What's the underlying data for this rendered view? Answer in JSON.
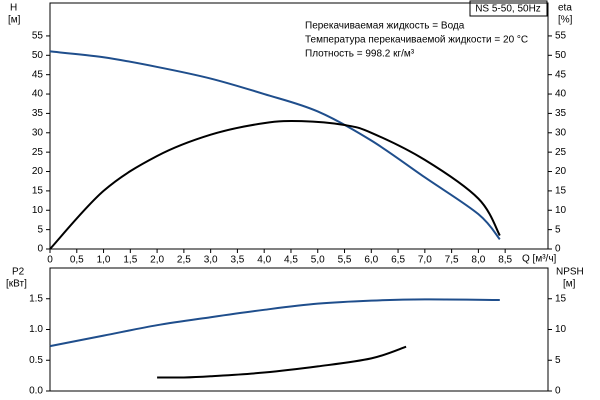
{
  "chart_data": [
    {
      "type": "line",
      "annotations": [
        "NS 5-50, 50Hz",
        "Перекачиваемая жидкость = Вода",
        "Температура перекачиваемой жидкости = 20 °C",
        "Плотность = 998.2 кг/м³"
      ],
      "ylabel": [
        "H",
        "[м]"
      ],
      "y2label": [
        "eta",
        "[%]"
      ],
      "xlabel": "Q [м³/ч]",
      "xlim": [
        0,
        9.3
      ],
      "xticks": [
        0,
        {
          "value": 0.5,
          "label": "0,5"
        },
        {
          "value": 1,
          "label": "1,0"
        },
        {
          "value": 1.5,
          "label": "1,5"
        },
        {
          "value": 2,
          "label": "2,0"
        },
        {
          "value": 2.5,
          "label": "2,5"
        },
        {
          "value": 3,
          "label": "3,0"
        },
        {
          "value": 3.5,
          "label": "3,5"
        },
        {
          "value": 4,
          "label": "4,0"
        },
        {
          "value": 4.5,
          "label": "4,5"
        },
        {
          "value": 5,
          "label": "5,0"
        },
        {
          "value": 5.5,
          "label": "5,5"
        },
        {
          "value": 6,
          "label": "6,0"
        },
        {
          "value": 6.5,
          "label": "6,5"
        },
        {
          "value": 7,
          "label": "7,0"
        },
        {
          "value": 7.5,
          "label": "7,5"
        },
        {
          "value": 8,
          "label": "8,0"
        },
        {
          "value": 8.5,
          "label": "8,5"
        }
      ],
      "ylim": [
        0,
        63.5
      ],
      "yticks": [
        0,
        5,
        10,
        15,
        20,
        25,
        30,
        35,
        40,
        45,
        50,
        55
      ],
      "y2lim": [
        0,
        63.5
      ],
      "y2ticks": [
        0,
        5,
        10,
        15,
        20,
        25,
        30,
        35,
        40,
        45,
        50,
        55
      ],
      "series": [
        {
          "color": "#1f4e8c",
          "x": [
            0,
            1,
            2,
            3,
            4,
            5,
            6,
            7,
            8,
            8.4
          ],
          "values": [
            51,
            49.5,
            47,
            44,
            40,
            35.5,
            28,
            18.5,
            9,
            2.5
          ]
        },
        {
          "color": "#000000",
          "axis": "y2",
          "x": [
            0,
            1,
            2,
            3,
            4,
            4.7,
            5.5,
            6,
            7,
            8,
            8.4
          ],
          "values": [
            0,
            15,
            24,
            29.5,
            32.5,
            33,
            32,
            30,
            23,
            13,
            3.5
          ]
        }
      ]
    },
    {
      "type": "line",
      "ylabel": [
        "P2",
        "[кВт]"
      ],
      "y2label": [
        "NPSH",
        "[м]"
      ],
      "xlim": [
        0,
        9.3
      ],
      "ylim": [
        0,
        2
      ],
      "yticks": [
        {
          "value": 0,
          "label": "0.0"
        },
        0.5,
        {
          "value": 1,
          "label": "1.0"
        },
        1.5
      ],
      "y2lim": [
        0,
        20
      ],
      "y2ticks": [
        0,
        5,
        10,
        15
      ],
      "series": [
        {
          "color": "#1f4e8c",
          "x": [
            0,
            1,
            2,
            3,
            4,
            5,
            6,
            7,
            8.4
          ],
          "values": [
            0.73,
            0.9,
            1.07,
            1.2,
            1.32,
            1.42,
            1.47,
            1.49,
            1.48
          ]
        },
        {
          "color": "#000000",
          "axis": "y2",
          "x": [
            2,
            2.5,
            3,
            4,
            5,
            6,
            6.65
          ],
          "values": [
            2.2,
            2.2,
            2.4,
            3,
            4,
            5.3,
            7.2
          ]
        }
      ]
    }
  ]
}
